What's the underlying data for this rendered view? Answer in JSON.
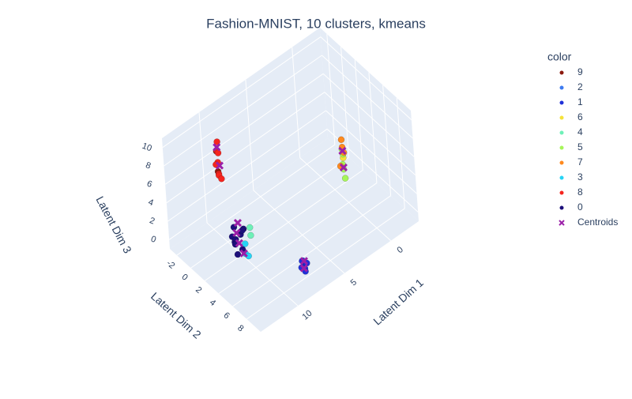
{
  "chart_data": {
    "type": "scatter3d",
    "title": "Fashion-MNIST, 10 clusters, kmeans",
    "xlabel": "Latent Dim 1",
    "ylabel": "Latent Dim 2",
    "zlabel": "Latent Dim 3",
    "xlim": [
      -3,
      14
    ],
    "ylim": [
      -3,
      10
    ],
    "zlim": [
      -1,
      11
    ],
    "xticks": [
      0,
      5,
      10
    ],
    "yticks": [
      -2,
      0,
      2,
      4,
      6,
      8
    ],
    "zticks": [
      0,
      2,
      4,
      6,
      8,
      10
    ],
    "legend_title": "color",
    "legend_position": "right",
    "series": [
      {
        "name": "9",
        "color": "#8b1a0e",
        "x": [
          10.4,
          10.5
        ],
        "y": [
          -0.2,
          0
        ],
        "z": [
          9.0,
          7.0
        ]
      },
      {
        "name": "2",
        "color": "#3d7bf0",
        "x": [
          7.9,
          8.0
        ],
        "y": [
          8.1,
          8.4
        ],
        "z": [
          1.1,
          0.9
        ]
      },
      {
        "name": "1",
        "color": "#1f30d8",
        "x": [
          7.8,
          8.0,
          7.9,
          8.1,
          7.7,
          8.2
        ],
        "y": [
          8.2,
          8.5,
          8.0,
          8.7,
          8.4,
          8.3
        ],
        "z": [
          0.8,
          0.6,
          1.0,
          0.5,
          0.9,
          0.7
        ]
      },
      {
        "name": "6",
        "color": "#f5e23a",
        "x": [
          2.7,
          2.6
        ],
        "y": [
          7.7,
          7.5
        ],
        "z": [
          8.9,
          8.1
        ]
      },
      {
        "name": "4",
        "color": "#6ef0b8",
        "x": [
          10.0,
          10.3
        ],
        "y": [
          3.5,
          4.0
        ],
        "z": [
          3.0,
          2.7
        ]
      },
      {
        "name": "5",
        "color": "#a6f55a",
        "x": [
          2.8,
          2.6,
          2.9,
          2.7,
          2.8
        ],
        "y": [
          7.7,
          7.5,
          7.8,
          7.6,
          7.9
        ],
        "z": [
          9.3,
          8.5,
          7.8,
          7.0,
          6.3
        ]
      },
      {
        "name": "7",
        "color": "#ff8a1e",
        "x": [
          2.6,
          2.7,
          2.5,
          2.8
        ],
        "y": [
          7.4,
          7.6,
          7.5,
          7.3
        ],
        "z": [
          10.0,
          9.4,
          8.6,
          7.2
        ]
      },
      {
        "name": "3",
        "color": "#26d4f5",
        "x": [
          10.8,
          11.2,
          11.5,
          11.0
        ],
        "y": [
          3.8,
          4.3,
          4.8,
          4.5
        ],
        "z": [
          2.0,
          1.6,
          2.1,
          1.3
        ]
      },
      {
        "name": "8",
        "color": "#f5251e",
        "x": [
          10.2,
          10.5,
          10.3,
          10.6,
          10.4,
          10.5,
          10.3,
          10.2
        ],
        "y": [
          -0.3,
          0,
          -0.1,
          0.2,
          -0.4,
          0.1,
          -0.2,
          0
        ],
        "z": [
          9.8,
          9.3,
          8.8,
          8.2,
          7.4,
          6.8,
          6.3,
          6.0
        ]
      },
      {
        "name": "0",
        "color": "#1c0f7a",
        "x": [
          10.5,
          11.0,
          10.2,
          11.3,
          10.8,
          11.6,
          10.0,
          11.1,
          10.6,
          11.9
        ],
        "y": [
          1.8,
          2.2,
          2.8,
          3.0,
          2.4,
          3.5,
          2.0,
          3.8,
          3.2,
          4.2
        ],
        "z": [
          2.2,
          1.8,
          2.5,
          2.0,
          1.5,
          2.3,
          1.2,
          1.6,
          2.9,
          1.9
        ]
      },
      {
        "name": "Centroids",
        "color": "#9b1fa8",
        "marker": "x",
        "x": [
          10.4,
          10.3,
          2.7,
          2.7,
          10.6,
          11.0,
          10.2,
          11.4,
          7.9,
          8.1
        ],
        "y": [
          -0.1,
          0,
          7.6,
          7.6,
          2.3,
          3.2,
          2.0,
          4.4,
          8.3,
          8.5
        ],
        "z": [
          9.5,
          7.5,
          9.0,
          7.2,
          2.0,
          1.8,
          2.6,
          1.8,
          1.2,
          0.7
        ]
      }
    ]
  }
}
